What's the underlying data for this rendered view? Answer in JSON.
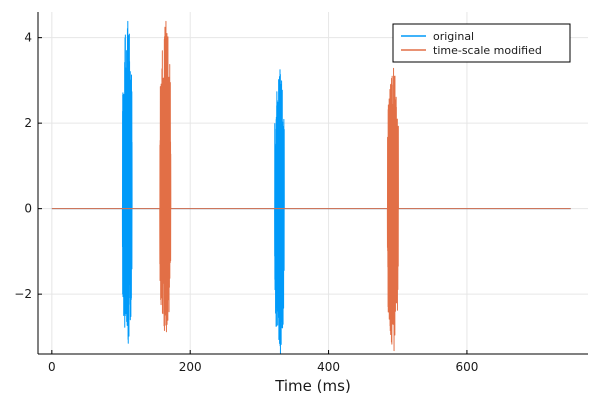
{
  "chart_data": {
    "type": "line",
    "title": "",
    "xlabel": "Time (ms)",
    "ylabel": "",
    "xlim": [
      -20,
      775
    ],
    "ylim": [
      -3.4,
      4.6
    ],
    "xticks": [
      0,
      200,
      400,
      600
    ],
    "yticks": [
      -2,
      0,
      2,
      4
    ],
    "xtick_labels": [
      "0",
      "200",
      "400",
      "600"
    ],
    "ytick_labels": [
      "−2",
      "0",
      "2",
      "4"
    ],
    "grid": true,
    "legend_position": "top-right",
    "x_range": [
      0,
      750
    ],
    "series": [
      {
        "name": "original",
        "color": "#009af9",
        "bursts": [
          {
            "start": 102,
            "end": 116,
            "min": -3.15,
            "max": 4.38
          },
          {
            "start": 322,
            "end": 336,
            "min": -3.38,
            "max": 3.25
          }
        ]
      },
      {
        "name": "time-scale modified",
        "color": "#e26f46",
        "bursts": [
          {
            "start": 156,
            "end": 172,
            "min": -2.88,
            "max": 4.38
          },
          {
            "start": 485,
            "end": 501,
            "min": -3.32,
            "max": 3.28
          }
        ]
      }
    ]
  }
}
